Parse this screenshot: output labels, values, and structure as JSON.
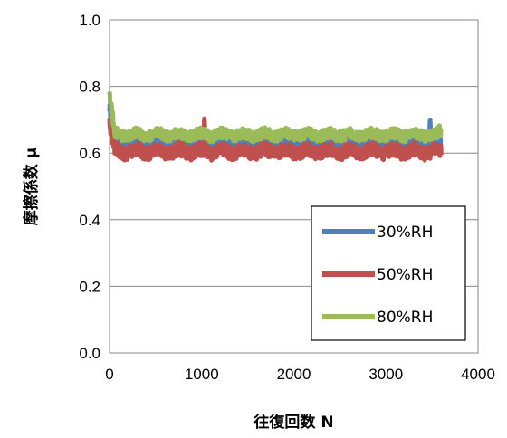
{
  "chart_data": {
    "type": "line",
    "title": "",
    "xlabel": "往復回数 N",
    "ylabel": "摩擦係数 μ",
    "xlim": [
      0,
      4000
    ],
    "ylim": [
      0.0,
      1.0
    ],
    "xticks": [
      0,
      1000,
      2000,
      3000,
      4000
    ],
    "xtick_labels": [
      "0",
      "1000",
      "2000",
      "3000",
      "4000"
    ],
    "yticks": [
      0.0,
      0.2,
      0.4,
      0.6,
      0.8,
      1.0
    ],
    "ytick_labels": [
      "0.0",
      "0.2",
      "0.4",
      "0.6",
      "0.8",
      "1.0"
    ],
    "grid": "horizontal",
    "legend_position": "lower-right",
    "series": [
      {
        "name": "30%RH",
        "color": "#4f81bd",
        "x_range": [
          0,
          3600
        ],
        "start_value": 0.74,
        "mean": 0.625,
        "noise": 0.018,
        "spikes": [
          {
            "x": 3480,
            "y": 0.7
          }
        ]
      },
      {
        "name": "50%RH",
        "color": "#c0504d",
        "x_range": [
          0,
          3600
        ],
        "start_value": 0.69,
        "mean": 0.605,
        "noise": 0.02,
        "spikes": [
          {
            "x": 1030,
            "y": 0.71
          }
        ]
      },
      {
        "name": "80%RH",
        "color": "#9bbb59",
        "x_range": [
          0,
          3600
        ],
        "start_value": 0.775,
        "mean": 0.655,
        "noise": 0.016,
        "spikes": [
          {
            "x": 3580,
            "y": 0.685
          }
        ]
      }
    ]
  }
}
